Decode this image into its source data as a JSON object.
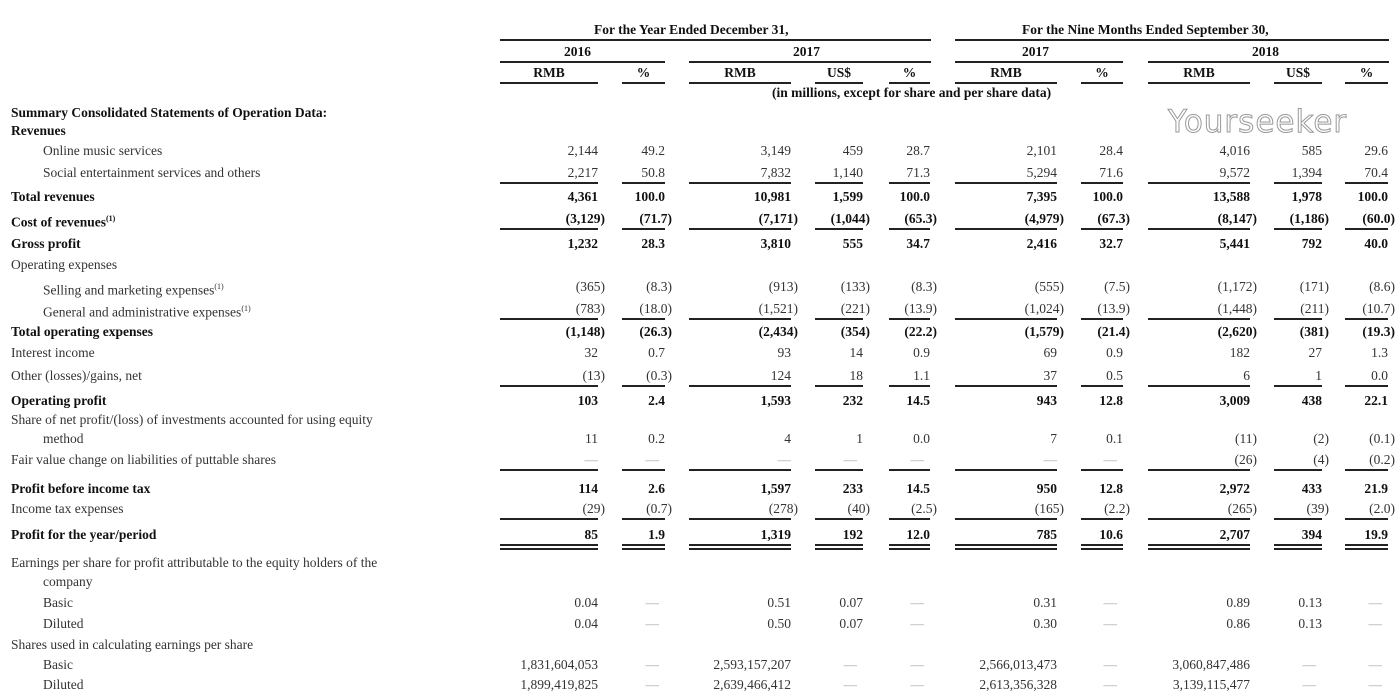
{
  "header": {
    "period_year": "For the Year Ended December 31,",
    "period_nine": "For the Nine Months Ended September 30,",
    "years": [
      "2016",
      "2017",
      "2017",
      "2018"
    ],
    "columns": [
      "RMB",
      "%",
      "RMB",
      "US$",
      "%",
      "RMB",
      "%",
      "RMB",
      "US$",
      "%"
    ],
    "units_note": "(in millions, except for share and per share data)"
  },
  "rows": [
    {
      "label": "Summary Consolidated Statements of Operation Data:",
      "bold": true,
      "indent": 0,
      "values": []
    },
    {
      "label": "Revenues",
      "bold": true,
      "indent": 0,
      "values": []
    },
    {
      "label": "Online music services",
      "bold": false,
      "indent": 1,
      "values": [
        "2,144",
        "49.2",
        "3,149",
        "459",
        "28.7",
        "2,101",
        "28.4",
        "4,016",
        "585",
        "29.6"
      ]
    },
    {
      "label": "Social entertainment services and others",
      "bold": false,
      "indent": 1,
      "values": [
        "2,217",
        "50.8",
        "7,832",
        "1,140",
        "71.3",
        "5,294",
        "71.6",
        "9,572",
        "1,394",
        "70.4"
      ],
      "rule": "single"
    },
    {
      "label": "Total revenues",
      "bold": true,
      "indent": 0,
      "values": [
        "4,361",
        "100.0",
        "10,981",
        "1,599",
        "100.0",
        "7,395",
        "100.0",
        "13,588",
        "1,978",
        "100.0"
      ]
    },
    {
      "label": "Cost of revenues",
      "note": "(1)",
      "bold": true,
      "indent": 0,
      "values": [
        "(3,129)",
        "(71.7)",
        "(7,171)",
        "(1,044)",
        "(65.3)",
        "(4,979)",
        "(67.3)",
        "(8,147)",
        "(1,186)",
        "(60.0)"
      ],
      "rule": "single"
    },
    {
      "label": "Gross profit",
      "bold": true,
      "indent": 0,
      "values": [
        "1,232",
        "28.3",
        "3,810",
        "555",
        "34.7",
        "2,416",
        "32.7",
        "5,441",
        "792",
        "40.0"
      ]
    },
    {
      "label": "Operating expenses",
      "bold": false,
      "indent": 0,
      "values": []
    },
    {
      "label": "Selling and marketing expenses",
      "note": "(1)",
      "bold": false,
      "indent": 1,
      "values": [
        "(365)",
        "(8.3)",
        "(913)",
        "(133)",
        "(8.3)",
        "(555)",
        "(7.5)",
        "(1,172)",
        "(171)",
        "(8.6)"
      ]
    },
    {
      "label": "General and administrative expenses",
      "note": "(1)",
      "bold": false,
      "indent": 1,
      "values": [
        "(783)",
        "(18.0)",
        "(1,521)",
        "(221)",
        "(13.9)",
        "(1,024)",
        "(13.9)",
        "(1,448)",
        "(211)",
        "(10.7)"
      ],
      "rule": "single"
    },
    {
      "label": "Total operating expenses",
      "bold": true,
      "indent": 0,
      "values": [
        "(1,148)",
        "(26.3)",
        "(2,434)",
        "(354)",
        "(22.2)",
        "(1,579)",
        "(21.4)",
        "(2,620)",
        "(381)",
        "(19.3)"
      ]
    },
    {
      "label": "Interest income",
      "bold": false,
      "indent": 0,
      "values": [
        "32",
        "0.7",
        "93",
        "14",
        "0.9",
        "69",
        "0.9",
        "182",
        "27",
        "1.3"
      ]
    },
    {
      "label": "Other (losses)/gains, net",
      "bold": false,
      "indent": 0,
      "values": [
        "(13)",
        "(0.3)",
        "124",
        "18",
        "1.1",
        "37",
        "0.5",
        "6",
        "1",
        "0.0"
      ],
      "rule": "single"
    },
    {
      "label": "Operating profit",
      "bold": true,
      "indent": 0,
      "values": [
        "103",
        "2.4",
        "1,593",
        "232",
        "14.5",
        "943",
        "12.8",
        "3,009",
        "438",
        "22.1"
      ]
    },
    {
      "label": "Share of net profit/(loss) of investments accounted for using equity",
      "bold": false,
      "indent": 0,
      "values": []
    },
    {
      "label": "method",
      "bold": false,
      "indent": 1,
      "values": [
        "11",
        "0.2",
        "4",
        "1",
        "0.0",
        "7",
        "0.1",
        "(11)",
        "(2)",
        "(0.1)"
      ]
    },
    {
      "label": "Fair value change on liabilities of puttable shares",
      "bold": false,
      "indent": 0,
      "values": [
        "—",
        "—",
        "—",
        "—",
        "—",
        "—",
        "—",
        "(26)",
        "(4)",
        "(0.2)"
      ],
      "rule": "single"
    },
    {
      "label": "Profit before income tax",
      "bold": true,
      "indent": 0,
      "values": [
        "114",
        "2.6",
        "1,597",
        "233",
        "14.5",
        "950",
        "12.8",
        "2,972",
        "433",
        "21.9"
      ]
    },
    {
      "label": "Income tax expenses",
      "bold": false,
      "indent": 0,
      "values": [
        "(29)",
        "(0.7)",
        "(278)",
        "(40)",
        "(2.5)",
        "(165)",
        "(2.2)",
        "(265)",
        "(39)",
        "(2.0)"
      ],
      "rule": "single"
    },
    {
      "label": "Profit for the year/period",
      "bold": true,
      "indent": 0,
      "values": [
        "85",
        "1.9",
        "1,319",
        "192",
        "12.0",
        "785",
        "10.6",
        "2,707",
        "394",
        "19.9"
      ],
      "rule": "double"
    },
    {
      "label": "Earnings per share for profit attributable to the equity holders of the",
      "bold": false,
      "indent": 0,
      "values": []
    },
    {
      "label": "company",
      "bold": false,
      "indent": 1,
      "values": []
    },
    {
      "label": "Basic",
      "bold": false,
      "indent": 1,
      "values": [
        "0.04",
        "—",
        "0.51",
        "0.07",
        "—",
        "0.31",
        "—",
        "0.89",
        "0.13",
        "—"
      ]
    },
    {
      "label": "Diluted",
      "bold": false,
      "indent": 1,
      "values": [
        "0.04",
        "—",
        "0.50",
        "0.07",
        "—",
        "0.30",
        "—",
        "0.86",
        "0.13",
        "—"
      ]
    },
    {
      "label": "Shares used in calculating earnings per share",
      "bold": false,
      "indent": 0,
      "values": []
    },
    {
      "label": "Basic",
      "bold": false,
      "indent": 1,
      "values": [
        "1,831,604,053",
        "—",
        "2,593,157,207",
        "—",
        "—",
        "2,566,013,473",
        "—",
        "3,060,847,486",
        "—",
        "—"
      ]
    },
    {
      "label": "Diluted",
      "bold": false,
      "indent": 1,
      "values": [
        "1,899,419,825",
        "—",
        "2,639,466,412",
        "—",
        "—",
        "2,613,356,328",
        "—",
        "3,139,115,477",
        "—",
        "—"
      ]
    }
  ],
  "watermark": "Yourseeker"
}
